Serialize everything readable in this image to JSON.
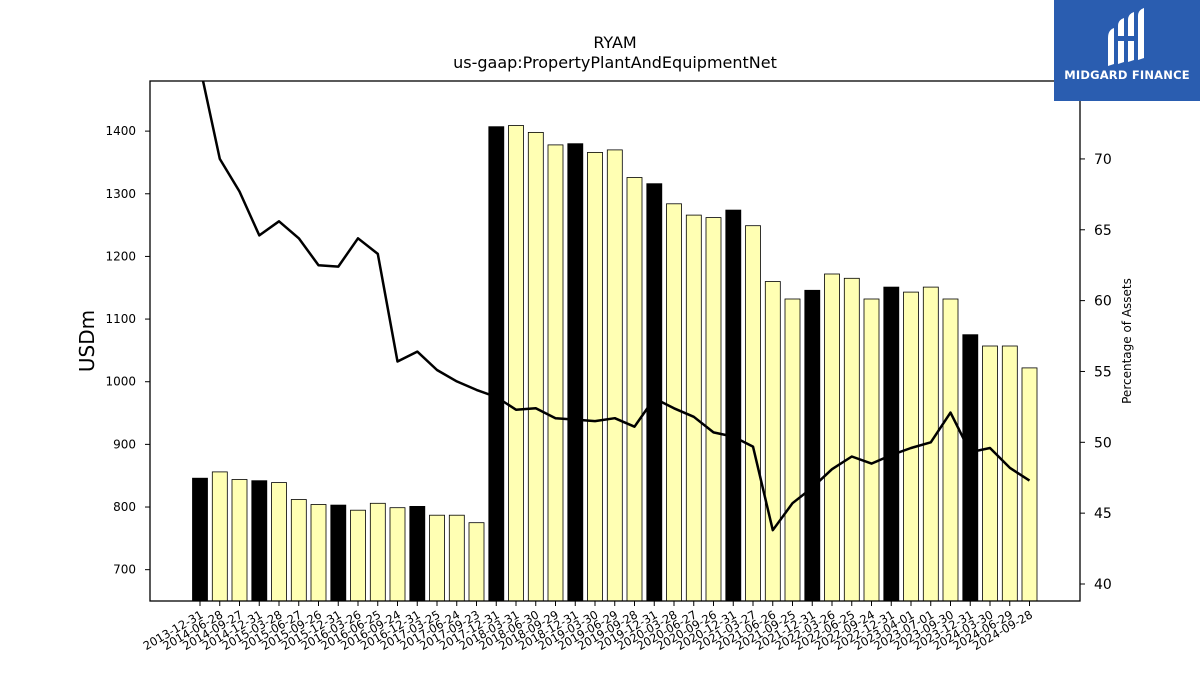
{
  "chart_data": {
    "type": "bar",
    "title": "RYAM",
    "subtitle": "us-gaap:PropertyPlantAndEquipmentNet",
    "ylabel": "USDm",
    "ylabel_right": "Percentage of Assets",
    "ylim": [
      650,
      1480
    ],
    "ylim_right": [
      38.8,
      75.5
    ],
    "yticks": [
      700,
      800,
      900,
      1000,
      1100,
      1200,
      1300,
      1400
    ],
    "yticks_right": [
      40,
      45,
      50,
      55,
      60,
      65,
      70
    ],
    "categories": [
      "2013-12-31",
      "2014-06-28",
      "2014-09-27",
      "2014-12-31",
      "2015-03-28",
      "2015-06-27",
      "2015-09-26",
      "2015-12-31",
      "2016-03-26",
      "2016-06-25",
      "2016-09-24",
      "2016-12-31",
      "2017-03-25",
      "2017-06-24",
      "2017-09-23",
      "2017-12-31",
      "2018-03-31",
      "2018-06-30",
      "2018-09-29",
      "2018-12-31",
      "2019-03-30",
      "2019-06-29",
      "2019-09-28",
      "2019-12-31",
      "2020-03-28",
      "2020-06-27",
      "2020-09-26",
      "2020-12-31",
      "2021-03-27",
      "2021-06-26",
      "2021-09-25",
      "2021-12-31",
      "2022-03-26",
      "2022-06-25",
      "2022-09-24",
      "2022-12-31",
      "2023-04-01",
      "2023-07-01",
      "2023-09-30",
      "2023-12-31",
      "2024-03-30",
      "2024-06-29",
      "2024-09-28"
    ],
    "series": [
      {
        "type": "bar",
        "values": [
          846,
          856,
          844,
          842,
          839,
          812,
          804,
          803,
          795,
          806,
          799,
          801,
          787,
          787,
          775,
          1407,
          1409,
          1398,
          1378,
          1380,
          1366,
          1370,
          1326,
          1316,
          1284,
          1266,
          1262,
          1274,
          1249,
          1160,
          1132,
          1146,
          1172,
          1165,
          1132,
          1151,
          1143,
          1151,
          1132,
          1075,
          1057,
          1057,
          1022
        ],
        "annual": [
          true,
          false,
          false,
          true,
          false,
          false,
          false,
          true,
          false,
          false,
          false,
          true,
          false,
          false,
          false,
          true,
          false,
          false,
          false,
          true,
          false,
          false,
          false,
          true,
          false,
          false,
          false,
          true,
          false,
          false,
          false,
          true,
          false,
          false,
          false,
          true,
          false,
          false,
          false,
          true,
          false,
          false,
          false
        ],
        "annual_color": "#000000",
        "quarter_color": "#ffffb3"
      },
      {
        "type": "line",
        "axis": "right",
        "color": "#000000",
        "values": [
          76.5,
          70.0,
          67.7,
          64.6,
          65.6,
          64.4,
          62.5,
          62.4,
          64.4,
          63.3,
          55.7,
          56.4,
          55.1,
          54.3,
          53.7,
          53.2,
          52.3,
          52.4,
          51.7,
          51.6,
          51.5,
          51.7,
          51.1,
          53.1,
          52.4,
          51.8,
          50.7,
          50.4,
          49.7,
          43.8,
          45.7,
          46.8,
          48.1,
          49.0,
          48.5,
          49.1,
          49.6,
          50.0,
          52.1,
          49.3,
          49.6,
          48.2,
          47.3
        ]
      }
    ]
  },
  "logo": {
    "text": "MIDGARD FINANCE"
  }
}
